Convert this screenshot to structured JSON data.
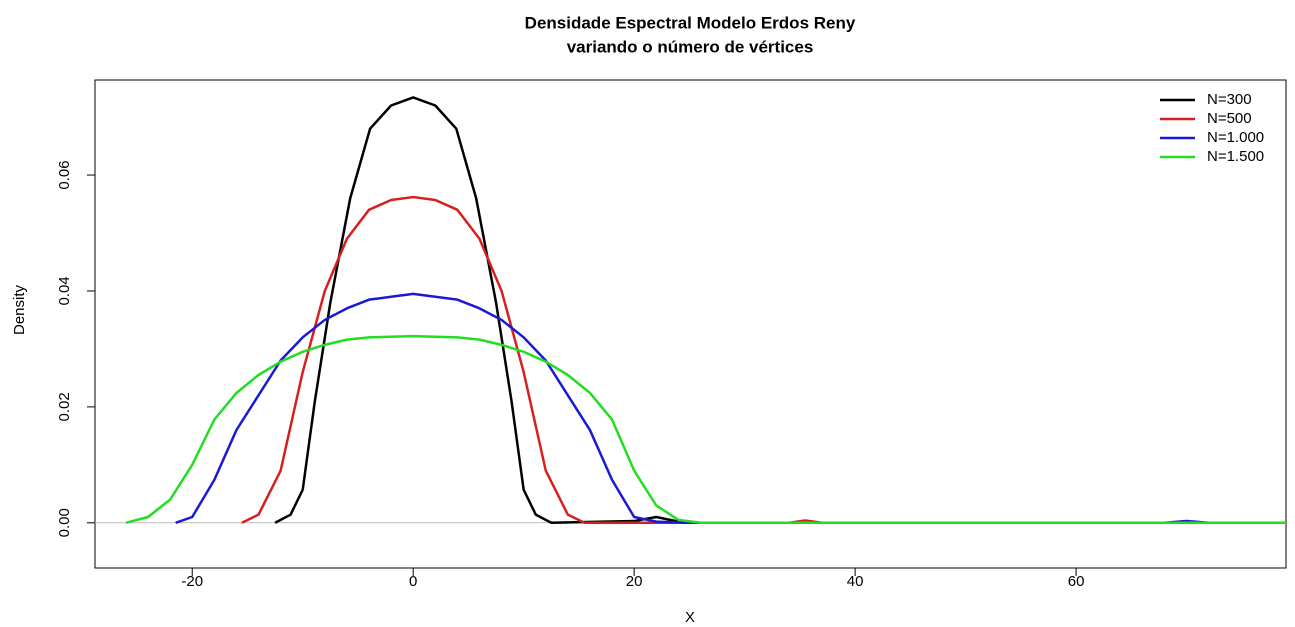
{
  "chart_data": {
    "type": "line",
    "title": "Densidade Espectral Modelo Erdos Reny",
    "subtitle": "variando o número de vértices",
    "x_label": "X",
    "y_label": "Density",
    "xlim": [
      -28.8,
      79.0
    ],
    "ylim": [
      -0.0078,
      0.0764
    ],
    "xticks": [
      -20,
      0,
      20,
      40,
      60
    ],
    "yticks": [
      {
        "value": 0,
        "label": "0.00"
      },
      {
        "value": 0.02,
        "label": "0.02"
      },
      {
        "value": 0.04,
        "label": "0.04"
      },
      {
        "value": 0.06,
        "label": "0.06"
      }
    ],
    "legend": "top-right",
    "series": [
      {
        "name": "N=300",
        "color": "#000000",
        "x": [
          -12.5,
          -11.1,
          -10,
          -8.9,
          -7.5,
          -5.7,
          -3.9,
          -2,
          0,
          2,
          3.9,
          5.7,
          7.5,
          8.9,
          10,
          11.1,
          12.5,
          20,
          22,
          24,
          25,
          79
        ],
        "values": [
          0,
          0.0014,
          0.0057,
          0.021,
          0.038,
          0.056,
          0.068,
          0.072,
          0.0734,
          0.072,
          0.068,
          0.056,
          0.038,
          0.021,
          0.0057,
          0.0014,
          0,
          0.0003,
          0.001,
          0.0002,
          0,
          0
        ]
      },
      {
        "name": "N=500",
        "color": "#d62020",
        "x": [
          -15.5,
          -14,
          -12,
          -10,
          -8,
          -6,
          -4,
          -2,
          0,
          2,
          4,
          6,
          8,
          10,
          12,
          14,
          15.5,
          34,
          35.5,
          37,
          79
        ],
        "values": [
          0,
          0.0014,
          0.009,
          0.026,
          0.04,
          0.049,
          0.054,
          0.0557,
          0.0562,
          0.0557,
          0.054,
          0.049,
          0.04,
          0.026,
          0.009,
          0.0014,
          0,
          0,
          0.0004,
          0,
          0
        ]
      },
      {
        "name": "N=1.000",
        "color": "#1a1ad6",
        "x": [
          -21.5,
          -20,
          -18,
          -16,
          -14,
          -12,
          -10,
          -8,
          -6,
          -4,
          -2,
          0,
          2,
          4,
          6,
          8,
          10,
          12,
          14,
          16,
          18,
          20,
          22,
          24.5,
          68,
          70,
          72,
          79
        ],
        "values": [
          0,
          0.001,
          0.0074,
          0.016,
          0.022,
          0.028,
          0.032,
          0.035,
          0.037,
          0.0385,
          0.039,
          0.0395,
          0.039,
          0.0385,
          0.037,
          0.035,
          0.032,
          0.028,
          0.022,
          0.016,
          0.0074,
          0.001,
          0.0002,
          0,
          0,
          0.0003,
          0,
          0
        ]
      },
      {
        "name": "N=1.500",
        "color": "#22dd22",
        "x": [
          -26,
          -24,
          -22,
          -20,
          -18,
          -16,
          -14,
          -12,
          -10,
          -8,
          -6,
          -4,
          0,
          4,
          6,
          8,
          10,
          12,
          14,
          16,
          18,
          20,
          22,
          24,
          26,
          79
        ],
        "values": [
          0,
          0.001,
          0.004,
          0.01,
          0.0178,
          0.0224,
          0.0255,
          0.0278,
          0.0295,
          0.0307,
          0.0316,
          0.032,
          0.0322,
          0.032,
          0.0316,
          0.0307,
          0.0295,
          0.0278,
          0.0255,
          0.0224,
          0.0178,
          0.009,
          0.003,
          0.0005,
          0,
          0
        ]
      }
    ]
  }
}
